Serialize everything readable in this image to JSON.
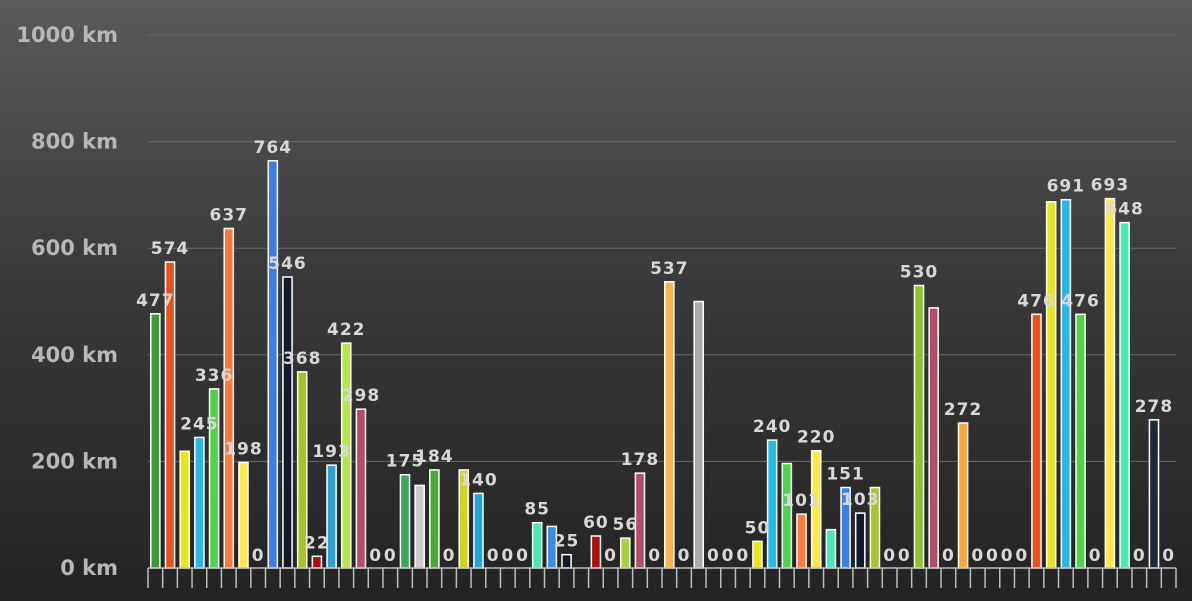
{
  "chart_data": {
    "type": "bar",
    "title": "",
    "xlabel": "",
    "ylabel": "",
    "ylim": [
      0,
      1000
    ],
    "y_ticks": [
      {
        "value": 0,
        "label": "0 km"
      },
      {
        "value": 200,
        "label": "200 km"
      },
      {
        "value": 400,
        "label": "400 km"
      },
      {
        "value": 600,
        "label": "600 km"
      },
      {
        "value": 800,
        "label": "800 km"
      },
      {
        "value": 1000,
        "label": "1000 km"
      }
    ],
    "grid": true,
    "legend": "none",
    "values": [
      477,
      574,
      219,
      245,
      336,
      637,
      198,
      0,
      764,
      546,
      368,
      22,
      193,
      422,
      298,
      0,
      0,
      175,
      155,
      184,
      0,
      184,
      140,
      0,
      0,
      0,
      85,
      78,
      25,
      0,
      60,
      0,
      56,
      178,
      0,
      537,
      0,
      500,
      0,
      0,
      0,
      50,
      240,
      196,
      101,
      220,
      72,
      151,
      103,
      151,
      0,
      0,
      530,
      488,
      0,
      272,
      0,
      0,
      0,
      0,
      476,
      687,
      691,
      476,
      0,
      693,
      648,
      0,
      278,
      0
    ],
    "labels": [
      "477",
      "574",
      "",
      "245",
      "336",
      "637",
      "198",
      "0",
      "764",
      "546",
      "368",
      "22",
      "193",
      "422",
      "298",
      "0",
      "0",
      "175",
      "",
      "184",
      "0",
      "",
      "140",
      "0",
      "0",
      "0",
      "85",
      "",
      "25",
      "",
      "60",
      "0",
      "56",
      "178",
      "0",
      "537",
      "0",
      "",
      "0",
      "0",
      "0",
      "50",
      "240",
      "",
      "101",
      "220",
      "",
      "151",
      "103",
      "",
      "0",
      "0",
      "530",
      "",
      "0",
      "272",
      "0",
      "0",
      "0",
      "0",
      "476",
      "",
      "691",
      "476",
      "0",
      "693",
      "648",
      "0",
      "278",
      "0"
    ],
    "colors": [
      "#3a9a3a",
      "#e8501e",
      "#e6e61a",
      "#26b8e6",
      "#4fd34f",
      "#ff7a3a",
      "#ffe84a",
      "#888888",
      "#3a7ee6",
      "#111a2a",
      "#a4c42a",
      "#b01010",
      "#26a4d4",
      "#b4e84a",
      "#b84a6a",
      "#888888",
      "#888888",
      "#3aa85a",
      "#cccccc",
      "#4aa83a",
      "#888888",
      "#d4d41a",
      "#26a4d4",
      "#888888",
      "#888888",
      "#888888",
      "#4ae8b4",
      "#3a8ae6",
      "#111a2a",
      "#888888",
      "#b01010",
      "#888888",
      "#a4d43a",
      "#b84a6a",
      "#888888",
      "#ffb44a",
      "#888888",
      "#aaaaaa",
      "#888888",
      "#888888",
      "#888888",
      "#e6e61a",
      "#26b8e6",
      "#4fd34f",
      "#ff7a3a",
      "#ffe84a",
      "#4ae8b4",
      "#3a7ee6",
      "#111a2a",
      "#a4c42a",
      "#888888",
      "#888888",
      "#8ac42a",
      "#b84a6a",
      "#888888",
      "#ffa43a",
      "#888888",
      "#888888",
      "#888888",
      "#888888",
      "#e8501e",
      "#e6e61a",
      "#26b8e6",
      "#4fd34f",
      "#888888",
      "#ffe84a",
      "#4ae8b4",
      "#888888",
      "#1a2a3a",
      "#888888"
    ]
  }
}
